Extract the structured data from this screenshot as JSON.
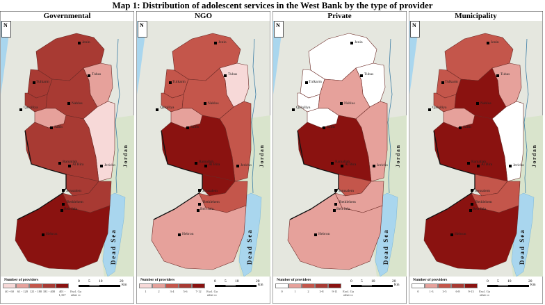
{
  "title": "Map 1: Distribution of adolescent services in the West Bank by the type of provider",
  "colors": {
    "white": "#ffffff",
    "c1": "#f7d9d8",
    "c2": "#e6a19b",
    "c3": "#c4564b",
    "c4": "#a83a33",
    "c5": "#8a1210",
    "sea": "#a9d6ee",
    "land": "#e5e7df",
    "landGreen": "#d9e4cc"
  },
  "places": {
    "jenin": "Jenin",
    "tubas": "Tubas",
    "tulkarm": "Tulkarm",
    "nablus": "Nablus",
    "qalqiliya": "Qalqiliya",
    "salfit": "Salfit",
    "jericho": "Jericho",
    "ramallah": "Ramallah",
    "albira": "Al Bira",
    "jerusalem": "Jerusalem",
    "bethlehem": "Bethlehem",
    "beitjala": "Beit Jala",
    "hebron": "Hebron"
  },
  "sea_label": "Dead Sea",
  "jordan_label": "Jordan",
  "legend_title": "Number of providers",
  "scale": {
    "labels": [
      "0",
      "5",
      "10",
      "20"
    ],
    "unit": "Km"
  },
  "north_symbol": "N",
  "panels": [
    {
      "id": "governmental",
      "title": "Governmental",
      "legend": [
        "40 - 60",
        "61 - 120",
        "121 - 180",
        "181 - 400",
        "401 - 1,167"
      ],
      "legend_extra": "Excl. Ga other cc",
      "fills": {
        "jenin": "c4",
        "tubas": "c2",
        "tulkarm": "c4",
        "qalqiliya": "c4",
        "nablus": "c4",
        "salfit": "c2",
        "jericho": "c1",
        "ramallah": "c4",
        "jerusalem": "c4",
        "bethlehem": "c4",
        "hebron": "c5"
      }
    },
    {
      "id": "ngo",
      "title": "NGO",
      "legend": [
        "1",
        "2",
        "3-4",
        "5-6",
        "7-12"
      ],
      "legend_extra": "Excl. Ga other cc",
      "fills": {
        "jenin": "c3",
        "tubas": "c1",
        "tulkarm": "c3",
        "qalqiliya": "c3",
        "nablus": "c3",
        "salfit": "c2",
        "jericho": "c3",
        "ramallah": "c5",
        "jerusalem": "c5",
        "bethlehem": "c3",
        "hebron": "c2"
      }
    },
    {
      "id": "private",
      "title": "Private",
      "legend": [
        "0",
        "1",
        "2",
        "3-8",
        "9-11"
      ],
      "legend_extra": "Excl. Ga other cc",
      "fills": {
        "jenin": "white",
        "tubas": "white",
        "tulkarm": "white",
        "qalqiliya": "white",
        "nablus": "c2",
        "salfit": "white",
        "jericho": "c2",
        "ramallah": "c5",
        "jerusalem": "c3",
        "bethlehem": "c2",
        "hebron": "c2"
      }
    },
    {
      "id": "municipality",
      "title": "Municipality",
      "legend": [
        "0",
        "1-3",
        "3-5",
        "6-8",
        "9-13"
      ],
      "legend_extra": "Excl. Ga other cc",
      "fills": {
        "jenin": "c3",
        "tubas": "c2",
        "tulkarm": "c3",
        "qalqiliya": "c3",
        "nablus": "c5",
        "salfit": "c2",
        "jericho": "white",
        "ramallah": "c5",
        "jerusalem": "c3",
        "bethlehem": "c3",
        "hebron": "c5"
      }
    }
  ]
}
